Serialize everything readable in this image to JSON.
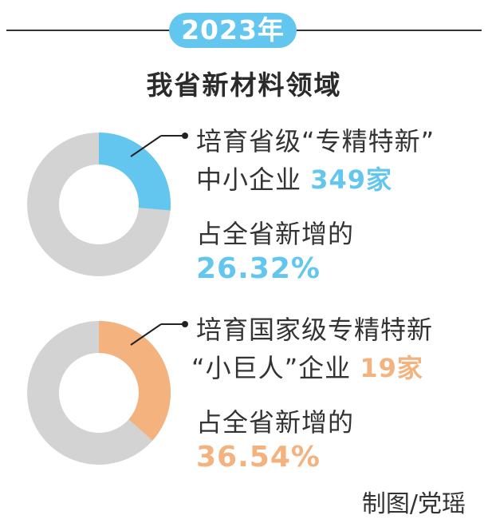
{
  "header": {
    "year": "2023年",
    "subtitle": "我省新材料领域"
  },
  "chart_data": [
    {
      "type": "pie",
      "donut": true,
      "value": 26.32,
      "value_label": "26.32%",
      "colors": {
        "fill": "#63c6ee",
        "remainder": "#d3d3d3"
      },
      "text": {
        "line1": "培育省级“专精特新”",
        "line2_prefix": "中小企业",
        "count": "349家",
        "line3": "占全省新增的"
      }
    },
    {
      "type": "pie",
      "donut": true,
      "value": 36.54,
      "value_label": "36.54%",
      "colors": {
        "fill": "#f3b27e",
        "remainder": "#d3d3d3"
      },
      "text": {
        "line1": "培育国家级专精特新",
        "line2_prefix": "“小巨人”企业",
        "count": "19家",
        "line3": "占全省新增的"
      }
    }
  ],
  "credit": "制图/党瑶"
}
